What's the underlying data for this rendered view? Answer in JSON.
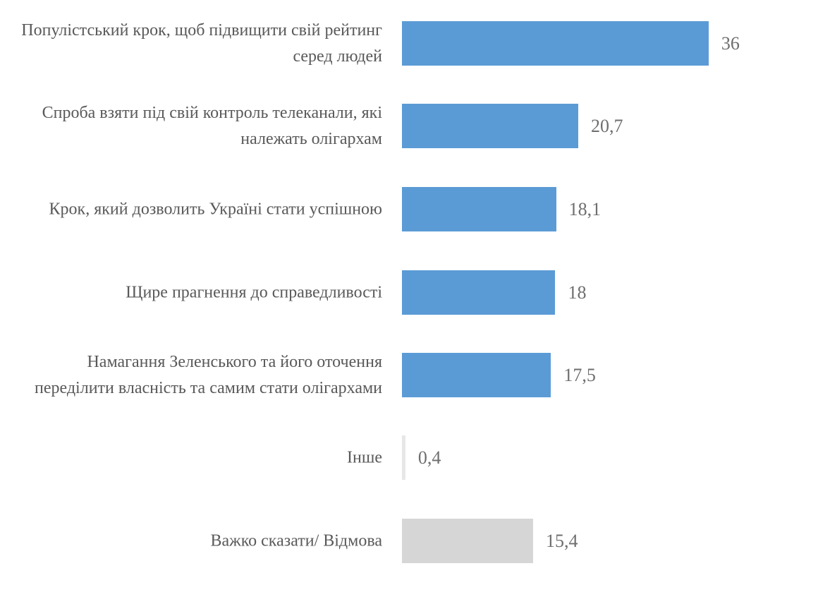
{
  "chart_data": {
    "type": "bar",
    "orientation": "horizontal",
    "title": "",
    "xlabel": "",
    "ylabel": "",
    "grid": false,
    "legend": false,
    "axis_visible": false,
    "categories": [
      "Популістський крок, щоб підвищити свій рейтинг серед людей",
      "Спроба взяти під свій контроль телеканали, які належать олігархам",
      "Крок, який дозволить Україні стати успішною",
      "Щире прагнення до справедливості",
      "Намагання Зеленського та його оточення переділити власність та самим стати олігархами",
      "Інше",
      "Важко сказати/ Відмова"
    ],
    "values": [
      36,
      20.7,
      18.1,
      18,
      17.5,
      0.4,
      15.4
    ],
    "value_labels": [
      "36",
      "20,7",
      "18,1",
      "18",
      "17,5",
      "0,4",
      "15,4"
    ],
    "bar_colors": [
      "#5b9bd5",
      "#5b9bd5",
      "#5b9bd5",
      "#5b9bd5",
      "#5b9bd5",
      "#e7e7e7",
      "#d6d6d6"
    ],
    "accent_color": "#5b9bd5",
    "neutral_bar_color": "#d6d6d6",
    "text_color": "#595959"
  }
}
